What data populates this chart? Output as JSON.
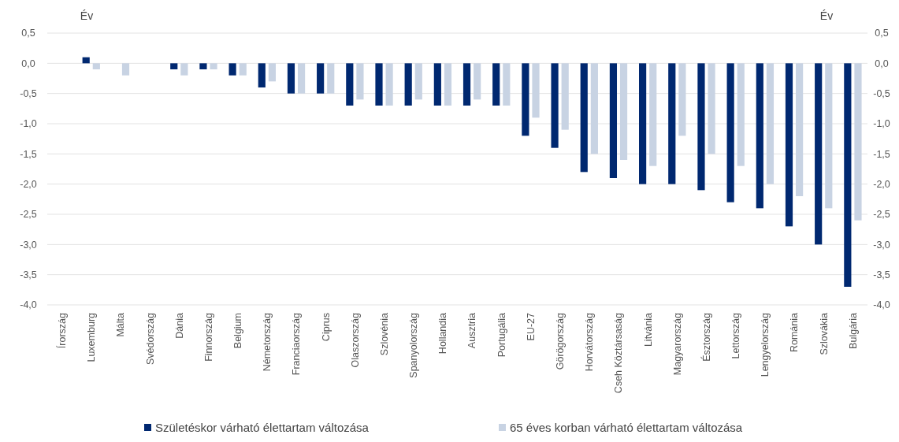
{
  "chart_data": {
    "type": "bar",
    "ylabel": "Év",
    "y2label": "Év",
    "categories": [
      "Írország",
      "Luxemburg",
      "Málta",
      "Svédország",
      "Dánia",
      "Finnország",
      "Belgium",
      "Németország",
      "Franciaország",
      "Ciprus",
      "Olaszország",
      "Szlovénia",
      "Spanyolország",
      "Hollandia",
      "Ausztria",
      "Portugália",
      "EU-27",
      "Görögország",
      "Horvátország",
      "Cseh Köztársaság",
      "Litvánia",
      "Magyarország",
      "Észtország",
      "Lettország",
      "Lengyelország",
      "Románia",
      "Szlovákia",
      "Bulgária"
    ],
    "series": [
      {
        "name": "Születéskor várható élettartam változása",
        "color": "#002870",
        "values": [
          0,
          0.1,
          0,
          0,
          -0.1,
          -0.1,
          -0.2,
          -0.4,
          -0.5,
          -0.5,
          -0.7,
          -0.7,
          -0.7,
          -0.7,
          -0.7,
          -0.7,
          -1.2,
          -1.4,
          -1.8,
          -1.9,
          -2.0,
          -2.0,
          -2.1,
          -2.3,
          -2.4,
          -2.7,
          -3.0,
          -3.7
        ]
      },
      {
        "name": "65 éves korban várható élettartam változása",
        "color": "#c8d3e3",
        "values": [
          0,
          -0.1,
          -0.2,
          0,
          -0.2,
          -0.1,
          -0.2,
          -0.3,
          -0.5,
          -0.5,
          -0.6,
          -0.7,
          -0.6,
          -0.7,
          -0.6,
          -0.7,
          -0.9,
          -1.1,
          -1.5,
          -1.6,
          -1.7,
          -1.2,
          -1.5,
          -1.7,
          -2.0,
          -2.2,
          -2.4,
          -2.6
        ]
      }
    ],
    "ylim": [
      -4,
      0.5
    ],
    "yticks": [
      {
        "value": 0.5,
        "label": "0,5"
      },
      {
        "value": 0,
        "label": "0,0"
      },
      {
        "value": -0.5,
        "label": "-0,5"
      },
      {
        "value": -1,
        "label": "-1,0"
      },
      {
        "value": -1.5,
        "label": "-1,5"
      },
      {
        "value": -2,
        "label": "-2,0"
      },
      {
        "value": -2.5,
        "label": "-2,5"
      },
      {
        "value": -3,
        "label": "-3,0"
      },
      {
        "value": -3.5,
        "label": "-3,5"
      },
      {
        "value": -4,
        "label": "-4,0"
      }
    ],
    "y2lim": [
      -4,
      0.5
    ],
    "y2ticks": [
      {
        "value": 0.5,
        "label": "0,5"
      },
      {
        "value": 0,
        "label": "0,0"
      },
      {
        "value": -0.5,
        "label": "-0,5"
      },
      {
        "value": -1,
        "label": "-1,0"
      },
      {
        "value": -1.5,
        "label": "-1,5"
      },
      {
        "value": -2,
        "label": "-2,0"
      },
      {
        "value": -2.5,
        "label": "-2,5"
      },
      {
        "value": -3,
        "label": "-3,0"
      },
      {
        "value": -3.5,
        "label": "-3,5"
      },
      {
        "value": -4,
        "label": "-4,0"
      }
    ],
    "grid": "y",
    "legend": "bottom"
  }
}
